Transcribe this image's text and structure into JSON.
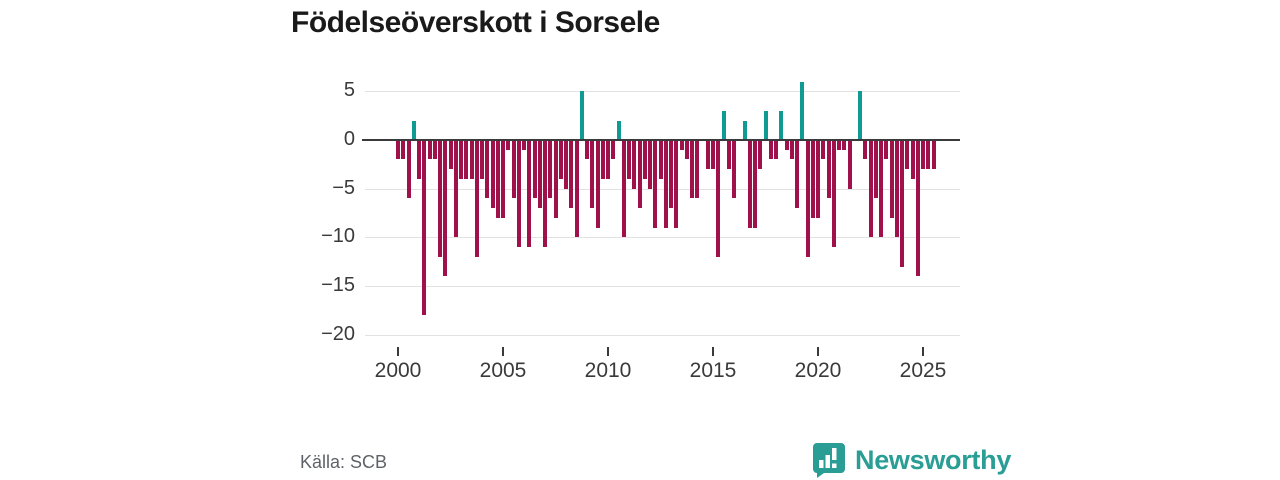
{
  "title": "Födelseöverskott i Sorsele",
  "source": {
    "label": "Källa: SCB"
  },
  "branding": {
    "name": "Newsworthy",
    "logo_icon": "speech-bubble-bar-chart",
    "color": "#2a9d95"
  },
  "colors": {
    "negative_bar": "#a0104b",
    "positive_bar": "#0f9b93",
    "grid": "#e2e2e2",
    "zero_line": "#3a3a3a",
    "axis_text": "#3a3a3a",
    "title_text": "#1a1a1a",
    "source_text": "#5f6368",
    "background": "#ffffff"
  },
  "chart_data": {
    "type": "bar",
    "title": "Födelseöverskott i Sorsele",
    "frequency": "quarterly",
    "x_start": "2000 Q1",
    "x_end": "2025 Q3",
    "x_tick_labels": [
      "2000",
      "2005",
      "2010",
      "2015",
      "2020",
      "2025"
    ],
    "y_ticks": [
      5,
      0,
      -5,
      -10,
      -15,
      -20
    ],
    "ylim": [
      -20.5,
      6.7
    ],
    "grid": true,
    "legend": false,
    "values": [
      -2,
      -2,
      -6,
      2,
      -4,
      -18,
      -2,
      -2,
      -12,
      -14,
      -3,
      -10,
      -4,
      -4,
      -4,
      -12,
      -4,
      -6,
      -7,
      -8,
      -8,
      -1,
      -6,
      -11,
      -1,
      -11,
      -6,
      -7,
      -11,
      -6,
      -8,
      -4,
      -5,
      -7,
      -10,
      5,
      -2,
      -7,
      -9,
      -4,
      -4,
      -2,
      2,
      -10,
      -4,
      -5,
      -7,
      -4,
      -5,
      -9,
      -4,
      -9,
      -7,
      -9,
      -1,
      -2,
      -6,
      -6,
      0,
      -3,
      -3,
      -12,
      3,
      -3,
      -6,
      0,
      2,
      -9,
      -9,
      -3,
      3,
      -2,
      -2,
      3,
      -1,
      -2,
      -7,
      6,
      -12,
      -8,
      -8,
      -2,
      -6,
      -11,
      -1,
      -1,
      -5,
      0,
      5,
      -2,
      -10,
      -6,
      -10,
      -2,
      -8,
      -10,
      -13,
      -3,
      -4,
      -14,
      -3,
      -3,
      -3
    ]
  }
}
